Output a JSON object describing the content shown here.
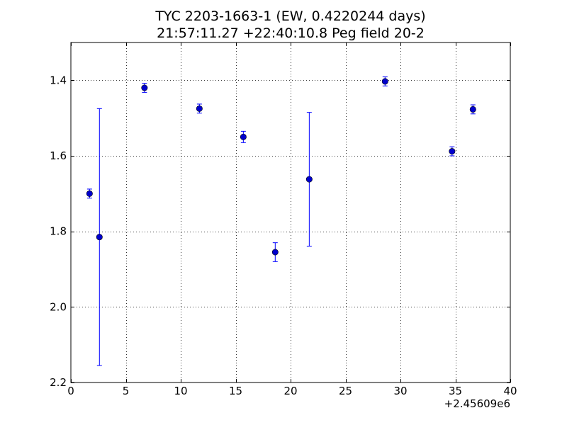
{
  "chart_data": {
    "type": "scatter",
    "title": "TYC 2203-1663-1 (EW, 0.4220244 days)",
    "subtitle": "21:57:11.27 +22:40:10.8 Peg field 20-2",
    "xlabel": "",
    "ylabel": "",
    "x_offset_label": "+2.45609e6",
    "xlim": [
      0,
      40
    ],
    "ylim": [
      2.2,
      1.3
    ],
    "y_inverted": true,
    "grid": true,
    "x_ticks": [
      0,
      5,
      10,
      15,
      20,
      25,
      30,
      35,
      40
    ],
    "x_tick_labels": [
      "0",
      "5",
      "10",
      "15",
      "20",
      "25",
      "30",
      "35",
      "40"
    ],
    "y_ticks": [
      1.4,
      1.6,
      1.8,
      2.0,
      2.2
    ],
    "y_tick_labels": [
      "1.4",
      "1.6",
      "1.8",
      "2.0",
      "2.2"
    ],
    "marker_color": "#0000cc",
    "errorbar_color": "#0000ff",
    "points": [
      {
        "x": 1.7,
        "y": 1.7,
        "err": 0.012
      },
      {
        "x": 2.6,
        "y": 1.815,
        "err": 0.34
      },
      {
        "x": 6.7,
        "y": 1.42,
        "err": 0.012
      },
      {
        "x": 11.7,
        "y": 1.475,
        "err": 0.012
      },
      {
        "x": 15.7,
        "y": 1.55,
        "err": 0.015
      },
      {
        "x": 18.6,
        "y": 1.855,
        "err": 0.025
      },
      {
        "x": 21.7,
        "y": 1.662,
        "err": 0.177
      },
      {
        "x": 28.6,
        "y": 1.403,
        "err": 0.012
      },
      {
        "x": 34.7,
        "y": 1.588,
        "err": 0.012
      },
      {
        "x": 36.6,
        "y": 1.477,
        "err": 0.012
      }
    ]
  }
}
